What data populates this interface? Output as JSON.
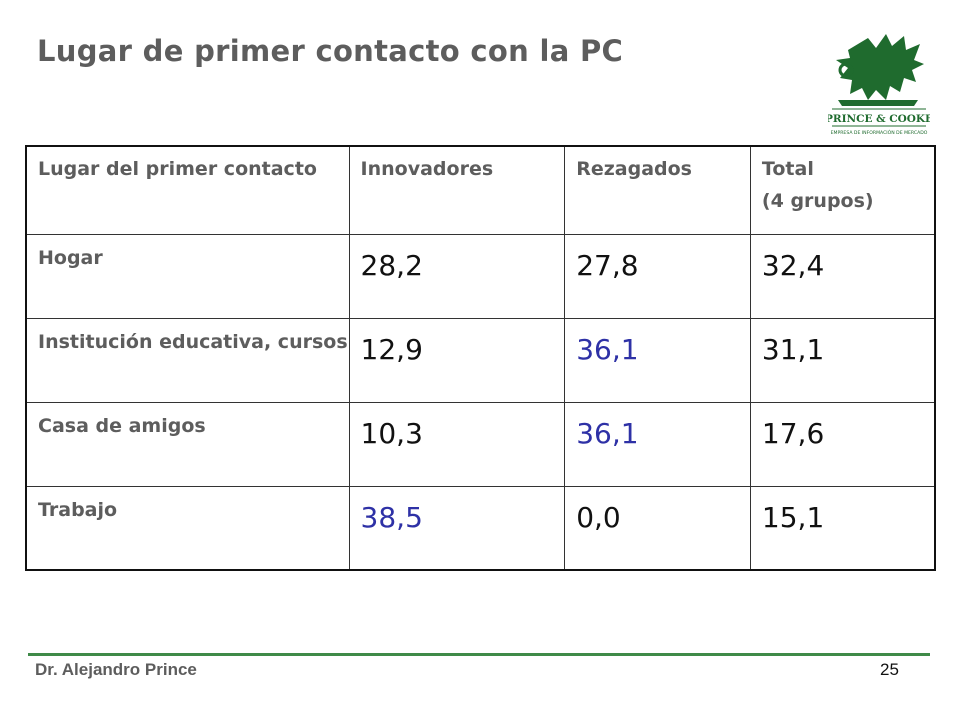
{
  "slide": {
    "title": "Lugar de primer contacto con la PC",
    "author": "Dr. Alejandro Prince",
    "page_number": "25"
  },
  "logo": {
    "name": "PRINCE & COOKE",
    "tagline": "EMPRESA DE INFORMACIÓN DE MERCADO",
    "color": "#1f6b2e"
  },
  "table": {
    "headers": [
      "Lugar del primer contacto",
      "Innovadores",
      "Rezagados",
      [
        "Total",
        "(4 grupos)"
      ]
    ],
    "rows": [
      {
        "label": "Hogar",
        "values": [
          "28,2",
          "27,8",
          "32,4"
        ]
      },
      {
        "label": "Institución educativa, cursos",
        "values": [
          "12,9",
          "36,1",
          "31,1"
        ]
      },
      {
        "label": "Casa de amigos",
        "values": [
          "10,3",
          "36,1",
          "17,6"
        ]
      },
      {
        "label": "Trabajo",
        "values": [
          "38,5",
          "0,0",
          "15,1"
        ]
      }
    ]
  },
  "colors": {
    "title_text": "#5d5d5d",
    "highlight_value": "#2e31a6",
    "footer_rule": "#3f8a48"
  }
}
